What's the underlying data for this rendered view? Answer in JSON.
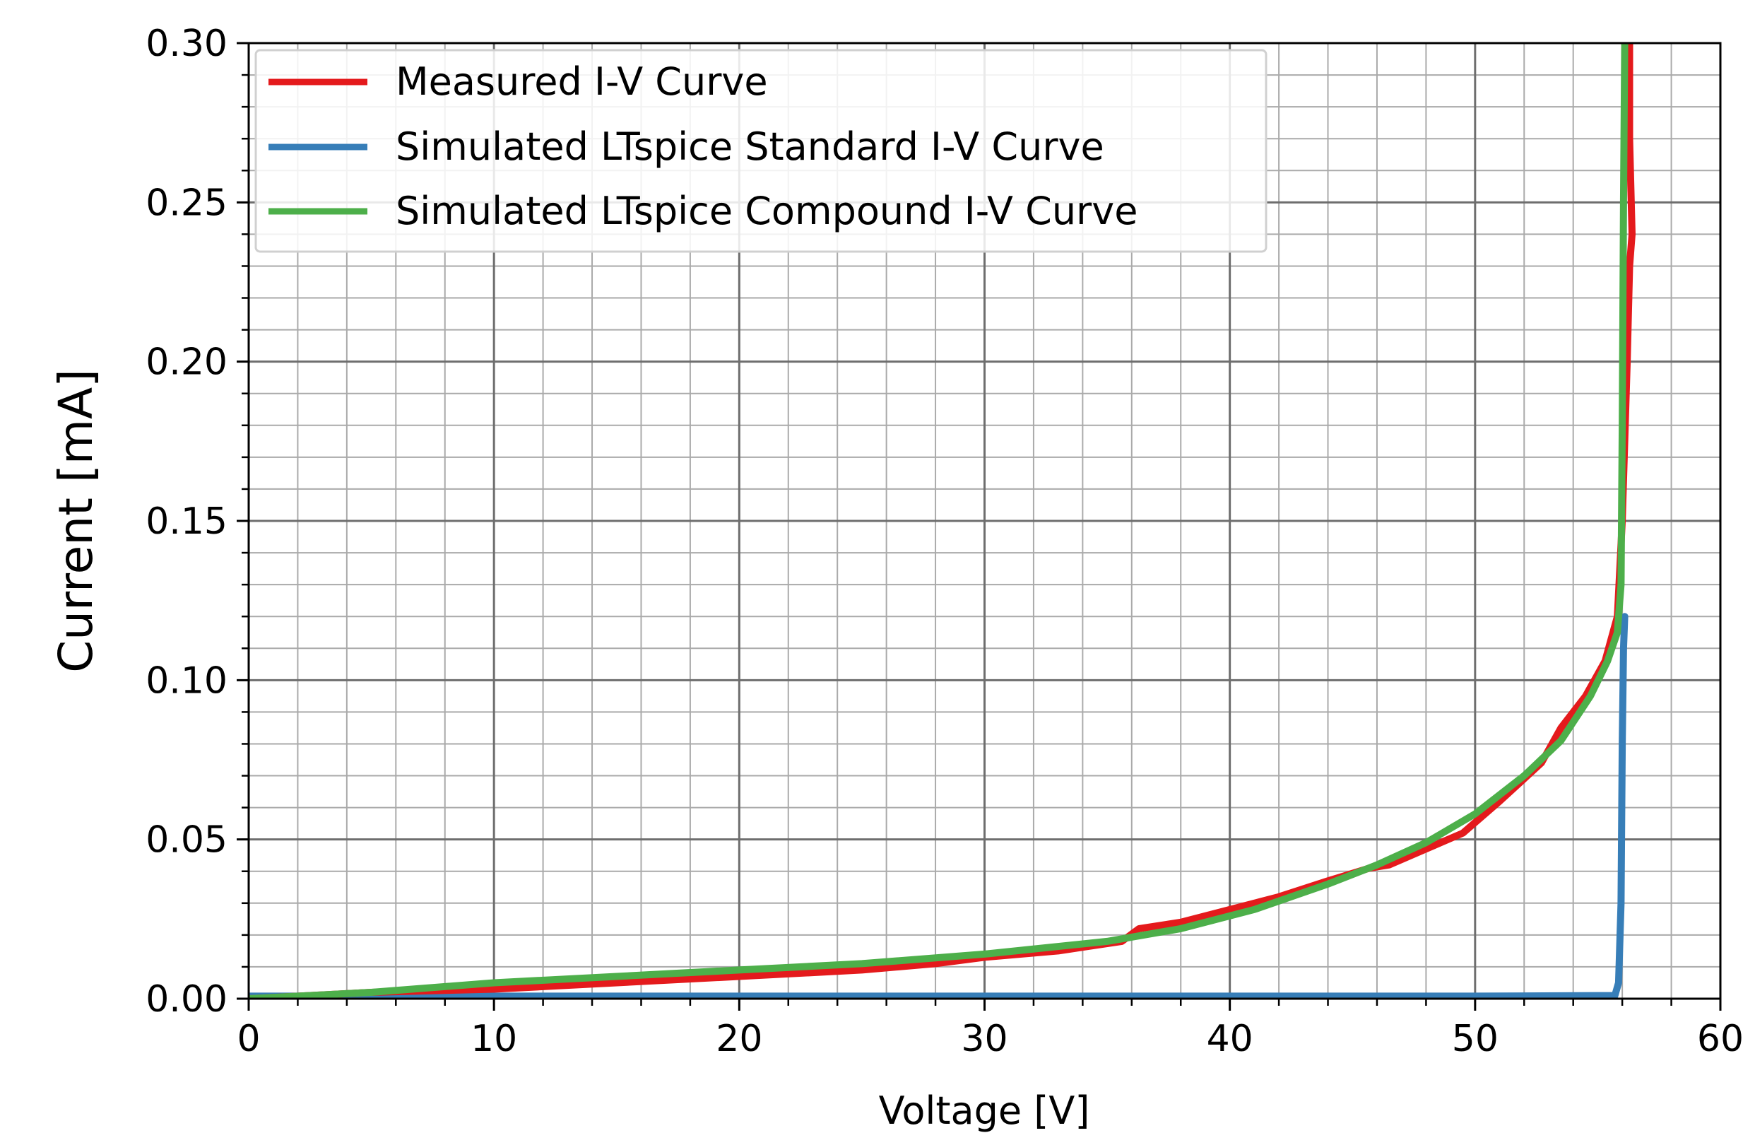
{
  "chart_data": {
    "type": "line",
    "title": "",
    "xlabel": "Voltage [V]",
    "ylabel": "Current [mA]",
    "xlim": [
      0,
      60
    ],
    "ylim": [
      0,
      0.3
    ],
    "x_major_ticks": [
      0,
      10,
      20,
      30,
      40,
      50,
      60
    ],
    "x_tick_labels": [
      "0",
      "10",
      "20",
      "30",
      "40",
      "50",
      "60"
    ],
    "x_minor_step": 2,
    "y_major_ticks": [
      0,
      0.05,
      0.1,
      0.15,
      0.2,
      0.25,
      0.3
    ],
    "y_tick_labels": [
      "0.00",
      "0.05",
      "0.10",
      "0.15",
      "0.20",
      "0.25",
      "0.30"
    ],
    "y_minor_step": 0.01,
    "grid": true,
    "legend_position": "top-left",
    "series": [
      {
        "name": "Measured I-V Curve",
        "color": "#e41a1c",
        "x": [
          0,
          5,
          10,
          15,
          20,
          25,
          28,
          30,
          33,
          35.6,
          36.3,
          38,
          40,
          42,
          44,
          45.7,
          46.5,
          48,
          49.5,
          51,
          52.7,
          53.5,
          54.5,
          55.3,
          55.8,
          56.0,
          56.2,
          56.3,
          56.4,
          56.3,
          56.3
        ],
        "y": [
          0,
          0.002,
          0.003,
          0.005,
          0.007,
          0.009,
          0.011,
          0.013,
          0.015,
          0.018,
          0.022,
          0.024,
          0.028,
          0.032,
          0.037,
          0.041,
          0.042,
          0.047,
          0.052,
          0.062,
          0.074,
          0.085,
          0.095,
          0.106,
          0.12,
          0.15,
          0.2,
          0.23,
          0.24,
          0.27,
          0.3
        ]
      },
      {
        "name": "Simulated LTspice Standard I-V Curve",
        "color": "#377eb8",
        "x": [
          0,
          10,
          20,
          30,
          40,
          50,
          55.7,
          55.85,
          55.95,
          56.0,
          56.05,
          56.1
        ],
        "y": [
          0.0008,
          0.0008,
          0.0008,
          0.0008,
          0.0008,
          0.0008,
          0.001,
          0.005,
          0.03,
          0.08,
          0.11,
          0.12
        ]
      },
      {
        "name": "Simulated LTspice Compound I-V Curve",
        "color": "#4daf4a",
        "x": [
          0,
          5,
          10,
          15,
          20,
          25,
          30,
          35,
          38,
          41,
          44,
          46,
          48,
          50,
          52,
          53.5,
          54.7,
          55.4,
          55.8,
          55.95,
          56.0,
          56.05,
          56.1
        ],
        "y": [
          0,
          0.002,
          0.005,
          0.007,
          0.009,
          0.011,
          0.014,
          0.018,
          0.022,
          0.028,
          0.036,
          0.042,
          0.049,
          0.058,
          0.07,
          0.081,
          0.095,
          0.106,
          0.115,
          0.13,
          0.18,
          0.25,
          0.3
        ]
      }
    ]
  }
}
